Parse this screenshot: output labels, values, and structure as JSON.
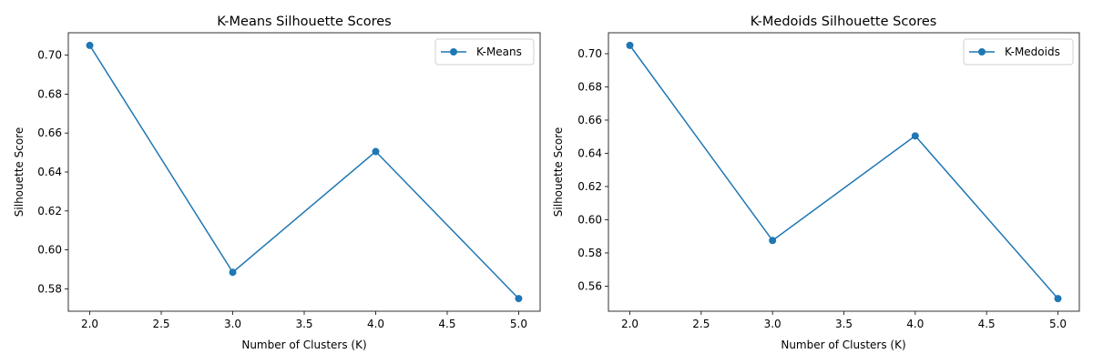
{
  "chart_data": [
    {
      "type": "line",
      "title": "K-Means Silhouette Scores",
      "xlabel": "Number of Clusters (K)",
      "ylabel": "Silhouette Score",
      "x": [
        2,
        3,
        4,
        5
      ],
      "series": [
        {
          "name": "K-Means",
          "values": [
            0.705,
            0.5885,
            0.6505,
            0.575
          ],
          "color": "#1f77b4",
          "marker": "circle"
        }
      ],
      "xlim": [
        1.85,
        5.15
      ],
      "ylim": [
        0.5685,
        0.7115
      ],
      "xticks": [
        2.0,
        2.5,
        3.0,
        3.5,
        4.0,
        4.5,
        5.0
      ],
      "xtick_labels": [
        "2.0",
        "2.5",
        "3.0",
        "3.5",
        "4.0",
        "4.5",
        "5.0"
      ],
      "yticks": [
        0.58,
        0.6,
        0.62,
        0.64,
        0.66,
        0.68,
        0.7
      ],
      "ytick_labels": [
        "0.58",
        "0.60",
        "0.62",
        "0.64",
        "0.66",
        "0.68",
        "0.70"
      ],
      "legend": "top-right",
      "grid": false
    },
    {
      "type": "line",
      "title": "K-Medoids Silhouette Scores",
      "xlabel": "Number of Clusters (K)",
      "ylabel": "Silhouette Score",
      "x": [
        2,
        3,
        4,
        5
      ],
      "series": [
        {
          "name": "K-Medoids",
          "values": [
            0.705,
            0.5875,
            0.6505,
            0.5525
          ],
          "color": "#1f77b4",
          "marker": "circle"
        }
      ],
      "xlim": [
        1.85,
        5.15
      ],
      "ylim": [
        0.5449,
        0.7126
      ],
      "xticks": [
        2.0,
        2.5,
        3.0,
        3.5,
        4.0,
        4.5,
        5.0
      ],
      "xtick_labels": [
        "2.0",
        "2.5",
        "3.0",
        "3.5",
        "4.0",
        "4.5",
        "5.0"
      ],
      "yticks": [
        0.56,
        0.58,
        0.6,
        0.62,
        0.64,
        0.66,
        0.68,
        0.7
      ],
      "ytick_labels": [
        "0.56",
        "0.58",
        "0.60",
        "0.62",
        "0.64",
        "0.66",
        "0.68",
        "0.70"
      ],
      "legend": "top-right",
      "grid": false
    }
  ]
}
